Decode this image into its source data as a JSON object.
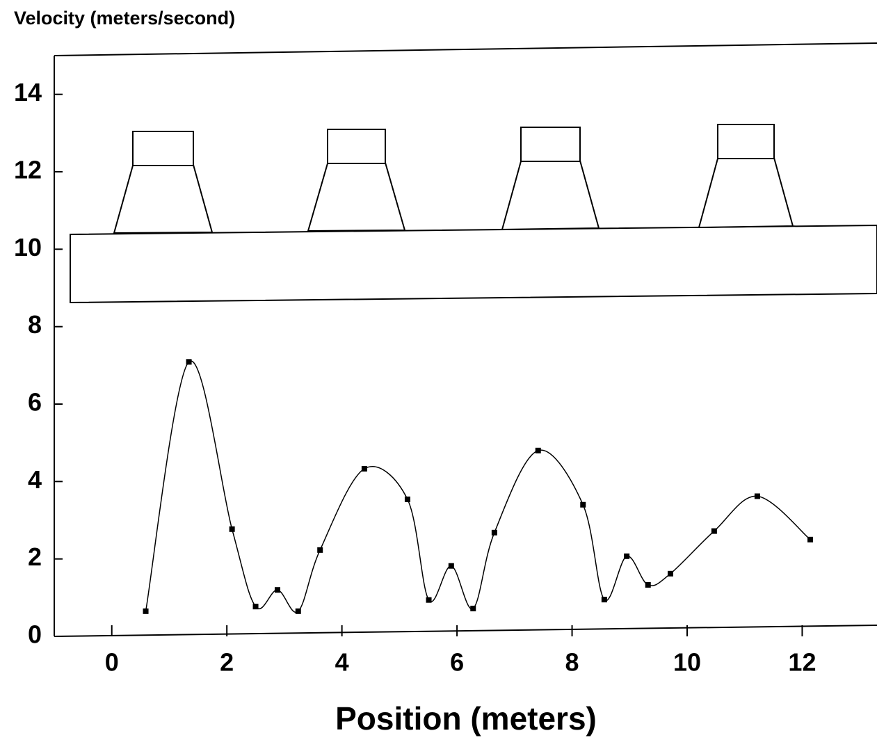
{
  "chart_data": {
    "type": "line",
    "title": "Velocity (meters/second)",
    "x_label": "Position (meters)",
    "x": [
      0.59,
      1.34,
      2.09,
      2.5,
      2.88,
      3.24,
      3.62,
      4.39,
      5.14,
      5.51,
      5.9,
      6.28,
      6.65,
      7.41,
      8.19,
      8.56,
      8.95,
      9.32,
      9.71,
      10.47,
      11.22,
      12.14
    ],
    "values": [
      0.65,
      7.09,
      2.77,
      0.77,
      1.2,
      0.65,
      2.23,
      4.33,
      3.54,
      0.94,
      1.82,
      0.72,
      2.68,
      4.8,
      3.4,
      0.95,
      2.07,
      1.33,
      1.62,
      2.72,
      3.62,
      2.5
    ],
    "color": "#000000",
    "xlim": [
      -1,
      13.3
    ],
    "xticks": [
      0,
      2,
      4,
      6,
      8,
      10,
      12
    ],
    "ylim": [
      0,
      15
    ],
    "yticks": [
      0,
      2,
      4,
      6,
      8,
      10,
      12,
      14
    ],
    "smooth": true
  }
}
